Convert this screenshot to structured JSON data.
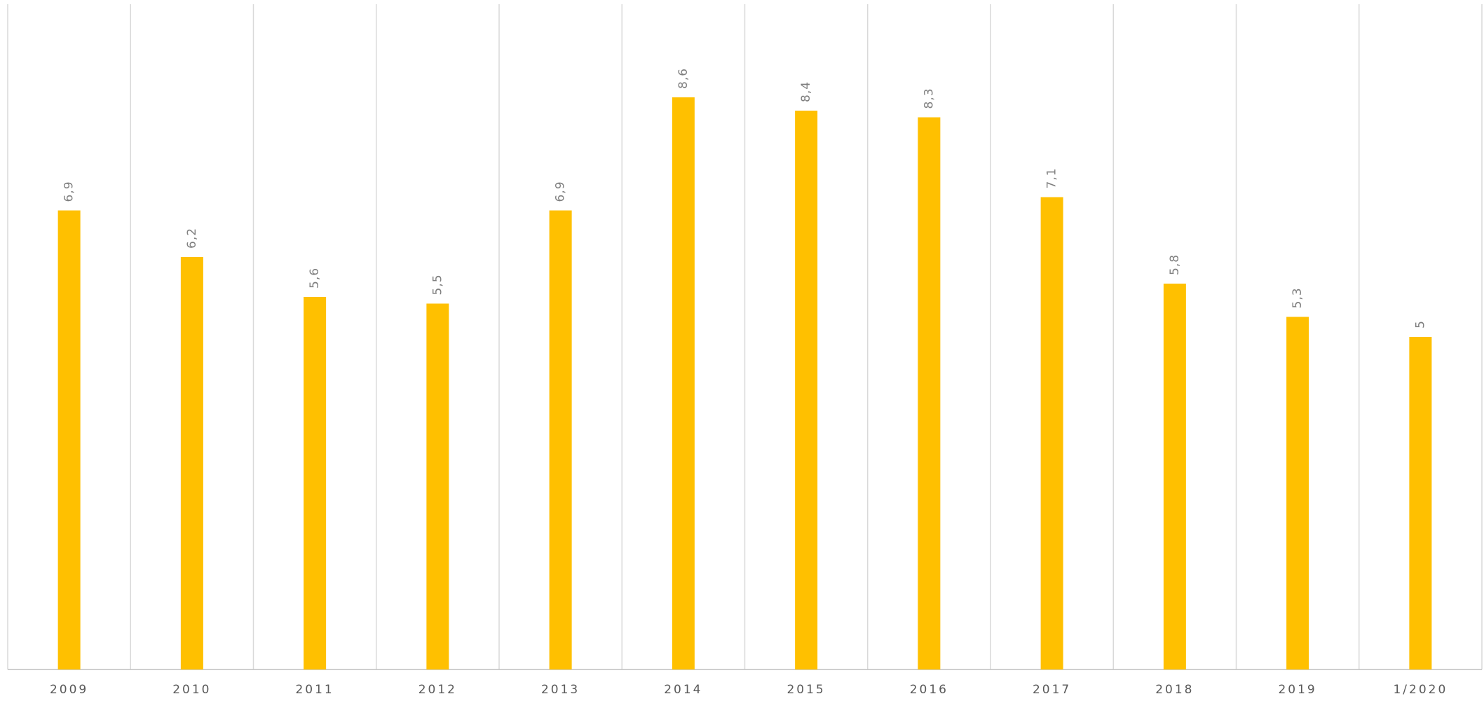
{
  "chart_data": {
    "type": "bar",
    "categories": [
      "2009",
      "2010",
      "2011",
      "2012",
      "2013",
      "2014",
      "2015",
      "2016",
      "2017",
      "2018",
      "2019",
      "1/2020"
    ],
    "values": [
      6.9,
      6.2,
      5.6,
      5.5,
      6.9,
      8.6,
      8.4,
      8.3,
      7.1,
      5.8,
      5.3,
      5
    ],
    "value_labels": [
      "6,9",
      "6,2",
      "5,6",
      "5,5",
      "6,9",
      "8,6",
      "8,4",
      "8,3",
      "7,1",
      "5,8",
      "5,3",
      "5"
    ],
    "color": "#ffc000",
    "ylim": [
      0,
      10
    ]
  }
}
